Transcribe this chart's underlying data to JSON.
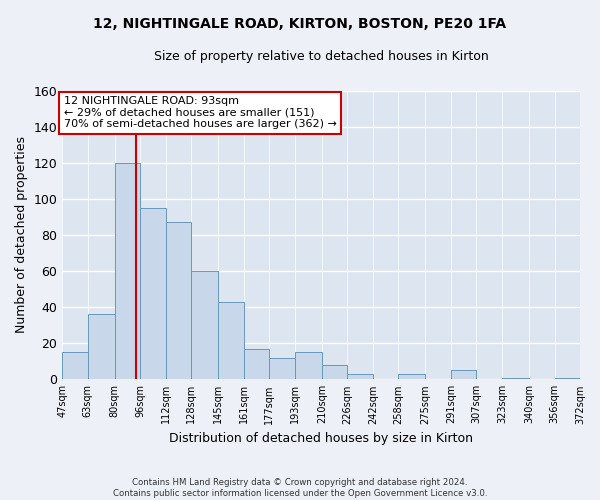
{
  "title": "12, NIGHTINGALE ROAD, KIRTON, BOSTON, PE20 1FA",
  "subtitle": "Size of property relative to detached houses in Kirton",
  "xlabel": "Distribution of detached houses by size in Kirton",
  "ylabel": "Number of detached properties",
  "bar_edges": [
    47,
    63,
    80,
    96,
    112,
    128,
    145,
    161,
    177,
    193,
    210,
    226,
    242,
    258,
    275,
    291,
    307,
    323,
    340,
    356,
    372
  ],
  "bar_heights": [
    15,
    36,
    120,
    95,
    87,
    60,
    43,
    17,
    12,
    15,
    8,
    3,
    0,
    3,
    0,
    5,
    0,
    1,
    0,
    1
  ],
  "bar_color": "#c8d8ea",
  "bar_edge_color": "#6699bb",
  "vline_x": 93,
  "vline_color": "#cc0000",
  "ylim": [
    0,
    160
  ],
  "yticks": [
    0,
    20,
    40,
    60,
    80,
    100,
    120,
    140,
    160
  ],
  "tick_labels": [
    "47sqm",
    "63sqm",
    "80sqm",
    "96sqm",
    "112sqm",
    "128sqm",
    "145sqm",
    "161sqm",
    "177sqm",
    "193sqm",
    "210sqm",
    "226sqm",
    "242sqm",
    "258sqm",
    "275sqm",
    "291sqm",
    "307sqm",
    "323sqm",
    "340sqm",
    "356sqm",
    "372sqm"
  ],
  "annotation_title": "12 NIGHTINGALE ROAD: 93sqm",
  "annotation_line1": "← 29% of detached houses are smaller (151)",
  "annotation_line2": "70% of semi-detached houses are larger (362) →",
  "annotation_box_color": "#ffffff",
  "annotation_box_edge": "#cc0000",
  "footer_line1": "Contains HM Land Registry data © Crown copyright and database right 2024.",
  "footer_line2": "Contains public sector information licensed under the Open Government Licence v3.0.",
  "background_color": "#edf1f7",
  "grid_color": "#ffffff",
  "plot_bg_color": "#dde6f0"
}
